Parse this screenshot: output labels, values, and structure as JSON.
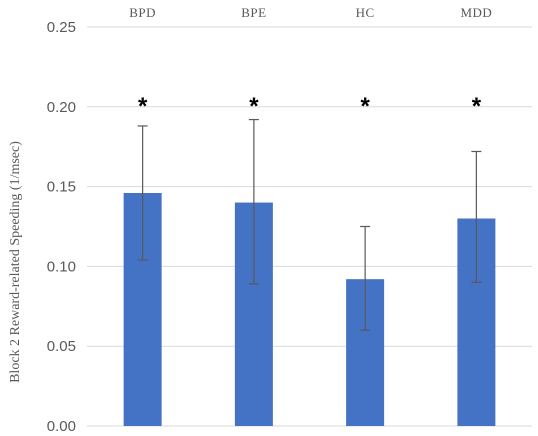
{
  "chart_data": {
    "type": "bar",
    "categories": [
      "BPD",
      "BPE",
      "HC",
      "MDD"
    ],
    "series": [
      {
        "values": [
          0.146,
          0.14,
          0.092,
          0.13
        ],
        "error_low": [
          0.104,
          0.089,
          0.06,
          0.09
        ],
        "error_high": [
          0.188,
          0.192,
          0.125,
          0.172
        ],
        "annotations": [
          "*",
          "*",
          "*",
          "*"
        ]
      }
    ],
    "ylabel": "Block  2 Reward-related  Speeding  (1/msec)",
    "ylim": [
      0,
      0.25
    ],
    "yticks": [
      "0.00",
      "0.05",
      "0.10",
      "0.15",
      "0.20",
      "0.25"
    ],
    "category_axis_position": "top",
    "grid": true,
    "bar_color": "#4472C4",
    "grid_color": "#D9D9D9",
    "error_bar_color": "#595959"
  }
}
